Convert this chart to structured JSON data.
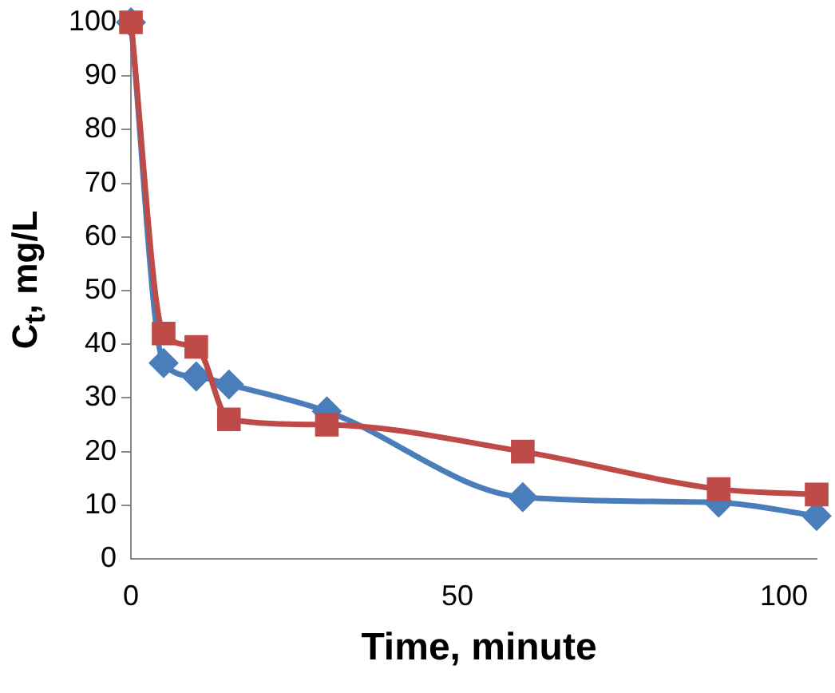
{
  "chart_data": {
    "type": "line",
    "xlabel": "Time, minute",
    "ylabel": "C$_{t}$, mg/L",
    "xlim": [
      0,
      105
    ],
    "xticks": [
      0,
      50,
      100
    ],
    "ylim": [
      0,
      100
    ],
    "yticks": [
      0,
      10,
      20,
      30,
      40,
      50,
      60,
      70,
      80,
      90,
      100
    ],
    "grid": false,
    "series": [
      {
        "color": "#4a7ebb",
        "marker": "diamond",
        "x": [
          0,
          5,
          10,
          15,
          30,
          60,
          90,
          105
        ],
        "values": [
          100,
          36.5,
          34,
          32.5,
          27.5,
          11.5,
          10.5,
          8
        ]
      },
      {
        "color": "#be4b48",
        "marker": "square",
        "x": [
          0,
          5,
          10,
          15,
          30,
          60,
          90,
          105
        ],
        "values": [
          100,
          42,
          39.5,
          26,
          25,
          20,
          13,
          12
        ]
      }
    ]
  }
}
